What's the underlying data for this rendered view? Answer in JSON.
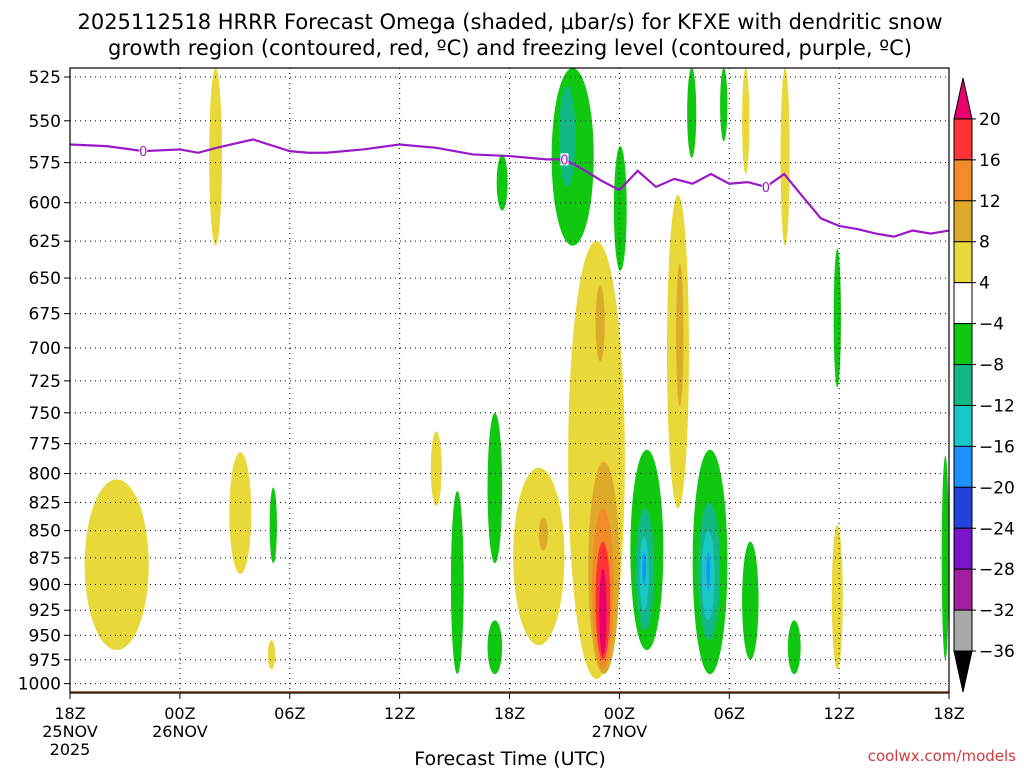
{
  "title_line1": "2025112518 HRRR Forecast Omega (shaded, μbar/s) for KFXE with dendritic snow",
  "title_line2": "growth region (contoured, red, ºC) and freezing level (contoured, purple, ºC)",
  "credit": "coolwx.com/models",
  "chart_data": {
    "type": "heatmap",
    "title": "2025112518 HRRR Forecast Omega (shaded, μbar/s) for KFXE with dendritic snow growth region (contoured, red, ºC) and freezing level (contoured, purple, ºC)",
    "xlabel": "Forecast Time (UTC)",
    "ylabel": "",
    "x_ticks": [
      {
        "hour": 0,
        "label": "18Z",
        "sub": [
          "25NOV",
          "2025"
        ]
      },
      {
        "hour": 6,
        "label": "00Z",
        "sub": [
          "26NOV"
        ]
      },
      {
        "hour": 12,
        "label": "06Z",
        "sub": []
      },
      {
        "hour": 18,
        "label": "12Z",
        "sub": []
      },
      {
        "hour": 24,
        "label": "18Z",
        "sub": []
      },
      {
        "hour": 30,
        "label": "00Z",
        "sub": [
          "27NOV"
        ]
      },
      {
        "hour": 36,
        "label": "06Z",
        "sub": []
      },
      {
        "hour": 42,
        "label": "12Z",
        "sub": []
      },
      {
        "hour": 48,
        "label": "18Z",
        "sub": []
      }
    ],
    "xlim": [
      0,
      48
    ],
    "y_ticks": [
      "525",
      "550",
      "575",
      "600",
      "625",
      "650",
      "675",
      "700",
      "725",
      "750",
      "775",
      "800",
      "825",
      "850",
      "875",
      "900",
      "925",
      "950",
      "975",
      "1000"
    ],
    "ylim": [
      1010,
      520
    ],
    "y_scale": "log-pressure",
    "grid": true,
    "colorbar": {
      "levels": [
        "20",
        "16",
        "12",
        "8",
        "4",
        "−4",
        "−8",
        "−12",
        "−16",
        "−20",
        "−24",
        "−28",
        "−32",
        "−36"
      ],
      "colors": [
        "#e8006e",
        "#ff3333",
        "#f28c28",
        "#ddaa2a",
        "#e8d83a",
        "#ffffff",
        "#10c810",
        "#14b884",
        "#18c8c8",
        "#1e90ff",
        "#2244dd",
        "#7a14c8",
        "#a020a0",
        "#a8a8a8",
        "#000000"
      ]
    },
    "freezing_level": {
      "label": "0",
      "color": "#9a18c8",
      "hours": [
        0,
        2,
        4,
        6,
        7,
        8,
        10,
        12,
        13,
        14,
        16,
        18,
        20,
        22,
        24,
        26,
        27,
        28,
        29,
        30,
        31,
        32,
        33,
        34,
        35,
        36,
        37,
        38,
        39,
        40,
        41,
        42,
        43,
        44,
        45,
        46,
        47,
        48
      ],
      "pressure": [
        564,
        565,
        568,
        567,
        569,
        566,
        561,
        568,
        569,
        569,
        567,
        564,
        566,
        570,
        571,
        573,
        573,
        579,
        586,
        592,
        580,
        590,
        585,
        588,
        582,
        588,
        587,
        590,
        582,
        596,
        610,
        615,
        617,
        620,
        622,
        618,
        620,
        618
      ]
    },
    "omega_regions": [
      {
        "level": "4",
        "color": "#e8d83a",
        "hours": [
          7.6,
          8.3
        ],
        "pressure": [
          520,
          628
        ]
      },
      {
        "level": "4",
        "color": "#e8d83a",
        "hours": [
          0.8,
          4.3
        ],
        "pressure": [
          805,
          965
        ]
      },
      {
        "level": "4",
        "color": "#e8d83a",
        "hours": [
          8.7,
          9.9
        ],
        "pressure": [
          782,
          890
        ]
      },
      {
        "level": "4",
        "color": "#e8d83a",
        "hours": [
          19.7,
          20.3
        ],
        "pressure": [
          765,
          828
        ]
      },
      {
        "level": "4",
        "color": "#e8d83a",
        "hours": [
          10.8,
          11.2
        ],
        "pressure": [
          955,
          985
        ]
      },
      {
        "level": "4",
        "color": "#e8d83a",
        "hours": [
          24.2,
          27.0
        ],
        "pressure": [
          795,
          960
        ]
      },
      {
        "level": "8",
        "color": "#ddaa2a",
        "hours": [
          25.6,
          26.1
        ],
        "pressure": [
          838,
          868
        ]
      },
      {
        "level": "4",
        "color": "#e8d83a",
        "hours": [
          27.2,
          30.3
        ],
        "pressure": [
          625,
          995
        ]
      },
      {
        "level": "8",
        "color": "#ddaa2a",
        "hours": [
          28.7,
          29.2
        ],
        "pressure": [
          655,
          710
        ]
      },
      {
        "level": "8",
        "color": "#ddaa2a",
        "hours": [
          28.3,
          30.0
        ],
        "pressure": [
          790,
          990
        ]
      },
      {
        "level": "12",
        "color": "#f28c28",
        "hours": [
          28.5,
          29.7
        ],
        "pressure": [
          830,
          985
        ]
      },
      {
        "level": "16",
        "color": "#ff3333",
        "hours": [
          28.7,
          29.5
        ],
        "pressure": [
          860,
          975
        ]
      },
      {
        "level": "20",
        "color": "#e8006e",
        "hours": [
          28.9,
          29.3
        ],
        "pressure": [
          885,
          970
        ]
      },
      {
        "level": "4",
        "color": "#e8d83a",
        "hours": [
          32.6,
          33.8
        ],
        "pressure": [
          595,
          830
        ]
      },
      {
        "level": "8",
        "color": "#ddaa2a",
        "hours": [
          33.1,
          33.5
        ],
        "pressure": [
          640,
          745
        ]
      },
      {
        "level": "4",
        "color": "#e8d83a",
        "hours": [
          36.7,
          37.1
        ],
        "pressure": [
          520,
          582
        ]
      },
      {
        "level": "4",
        "color": "#e8d83a",
        "hours": [
          38.8,
          39.3
        ],
        "pressure": [
          520,
          628
        ]
      },
      {
        "level": "4",
        "color": "#e8d83a",
        "hours": [
          41.6,
          42.2
        ],
        "pressure": [
          845,
          985
        ]
      },
      {
        "level": "-4",
        "color": "#10c810",
        "hours": [
          26.3,
          28.6
        ],
        "pressure": [
          520,
          628
        ]
      },
      {
        "level": "-8",
        "color": "#14b884",
        "hours": [
          26.7,
          27.6
        ],
        "pressure": [
          530,
          590
        ]
      },
      {
        "level": "-4",
        "color": "#10c810",
        "hours": [
          33.7,
          34.2
        ],
        "pressure": [
          520,
          572
        ]
      },
      {
        "level": "-4",
        "color": "#10c810",
        "hours": [
          35.5,
          35.9
        ],
        "pressure": [
          520,
          562
        ]
      },
      {
        "level": "-4",
        "color": "#10c810",
        "hours": [
          23.3,
          23.9
        ],
        "pressure": [
          570,
          605
        ]
      },
      {
        "level": "-4",
        "color": "#10c810",
        "hours": [
          29.7,
          30.4
        ],
        "pressure": [
          565,
          645
        ]
      },
      {
        "level": "-4",
        "color": "#10c810",
        "hours": [
          41.7,
          42.1
        ],
        "pressure": [
          630,
          730
        ]
      },
      {
        "level": "-4",
        "color": "#10c810",
        "hours": [
          10.9,
          11.3
        ],
        "pressure": [
          812,
          880
        ]
      },
      {
        "level": "-4",
        "color": "#10c810",
        "hours": [
          22.8,
          23.6
        ],
        "pressure": [
          750,
          880
        ]
      },
      {
        "level": "-4",
        "color": "#10c810",
        "hours": [
          20.8,
          21.5
        ],
        "pressure": [
          815,
          990
        ]
      },
      {
        "level": "-4",
        "color": "#10c810",
        "hours": [
          22.8,
          23.6
        ],
        "pressure": [
          935,
          990
        ]
      },
      {
        "level": "-4",
        "color": "#10c810",
        "hours": [
          30.6,
          32.4
        ],
        "pressure": [
          780,
          965
        ]
      },
      {
        "level": "-8",
        "color": "#14b884",
        "hours": [
          30.9,
          31.9
        ],
        "pressure": [
          830,
          945
        ]
      },
      {
        "level": "-12",
        "color": "#18c8c8",
        "hours": [
          31.1,
          31.6
        ],
        "pressure": [
          855,
          925
        ]
      },
      {
        "level": "-16",
        "color": "#1e90ff",
        "hours": [
          31.25,
          31.45
        ],
        "pressure": [
          870,
          900
        ]
      },
      {
        "level": "-4",
        "color": "#10c810",
        "hours": [
          34.0,
          35.9
        ],
        "pressure": [
          780,
          990
        ]
      },
      {
        "level": "-8",
        "color": "#14b884",
        "hours": [
          34.3,
          35.5
        ],
        "pressure": [
          825,
          955
        ]
      },
      {
        "level": "-12",
        "color": "#18c8c8",
        "hours": [
          34.5,
          35.2
        ],
        "pressure": [
          850,
          935
        ]
      },
      {
        "level": "-16",
        "color": "#1e90ff",
        "hours": [
          34.75,
          34.95
        ],
        "pressure": [
          870,
          905
        ]
      },
      {
        "level": "-4",
        "color": "#10c810",
        "hours": [
          36.7,
          37.6
        ],
        "pressure": [
          860,
          975
        ]
      },
      {
        "level": "-4",
        "color": "#10c810",
        "hours": [
          39.2,
          39.9
        ],
        "pressure": [
          935,
          990
        ]
      },
      {
        "level": "-4",
        "color": "#10c810",
        "hours": [
          47.6,
          48.0
        ],
        "pressure": [
          785,
          975
        ]
      }
    ],
    "terrain": {
      "color": "#a0562a",
      "pressure": 1008
    }
  }
}
